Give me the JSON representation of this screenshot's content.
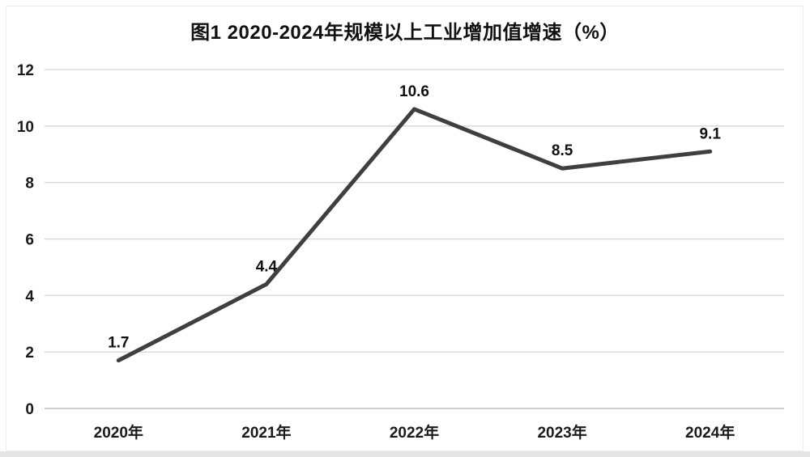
{
  "chart_data": {
    "type": "line",
    "title": "图1  2020-2024年规模以上工业增加值增速（%）",
    "categories": [
      "2020年",
      "2021年",
      "2022年",
      "2023年",
      "2024年"
    ],
    "series": [
      {
        "name": "规模以上工业增加值增速",
        "values": [
          1.7,
          4.4,
          10.6,
          8.5,
          9.1
        ]
      }
    ],
    "data_labels": [
      "1.7",
      "4.4",
      "10.6",
      "8.5",
      "9.1"
    ],
    "yticks": [
      0,
      2,
      4,
      6,
      8,
      10,
      12
    ],
    "ylim": [
      0,
      12
    ],
    "xlabel": "",
    "ylabel": "",
    "grid": "horizontal",
    "legend": "none",
    "colors": {
      "line": "#3f3f3f",
      "gridline": "#d6d6d6",
      "axis_line": "#bdbdbd",
      "text": "#1a1a1a",
      "background": "#ffffff",
      "bottom_strip": "#e5e5e5"
    }
  }
}
